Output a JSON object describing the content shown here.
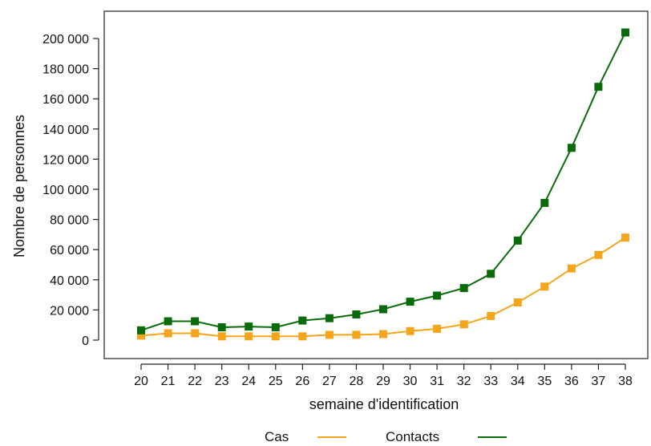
{
  "chart_data": {
    "type": "line",
    "title": "",
    "xlabel": "semaine d'identification",
    "ylabel": "Nombre de personnes",
    "x": [
      20,
      21,
      22,
      23,
      24,
      25,
      26,
      27,
      28,
      29,
      30,
      31,
      32,
      33,
      34,
      35,
      36,
      37,
      38
    ],
    "ylim": [
      0,
      200000
    ],
    "yticks": [
      0,
      20000,
      40000,
      60000,
      80000,
      100000,
      120000,
      140000,
      160000,
      180000,
      200000
    ],
    "ytick_labels": [
      "0",
      "20 000",
      "40 000",
      "60 000",
      "80 000",
      "100 000",
      "120 000",
      "140 000",
      "160 000",
      "180 000",
      "200 000"
    ],
    "grid": false,
    "legend_position": "bottom",
    "series": [
      {
        "name": "Cas",
        "color": "#f5a51b",
        "marker": "square",
        "values": [
          3000,
          4500,
          4500,
          2500,
          2500,
          2500,
          2500,
          3500,
          3500,
          4000,
          6000,
          7500,
          10500,
          16000,
          25000,
          35500,
          47500,
          56500,
          68000
        ]
      },
      {
        "name": "Contacts",
        "color": "#0a6b0a",
        "marker": "square",
        "values": [
          6500,
          12500,
          12500,
          8500,
          9000,
          8500,
          13000,
          14500,
          17000,
          20500,
          25500,
          29500,
          34500,
          44000,
          66000,
          91000,
          127500,
          168000,
          204000
        ]
      }
    ]
  }
}
